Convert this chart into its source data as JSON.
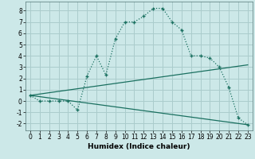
{
  "title": "",
  "xlabel": "Humidex (Indice chaleur)",
  "bg_color": "#cce8e8",
  "grid_color": "#aacccc",
  "line_color": "#1a7060",
  "xlim": [
    -0.5,
    23.5
  ],
  "ylim": [
    -2.6,
    8.8
  ],
  "yticks": [
    -2,
    -1,
    0,
    1,
    2,
    3,
    4,
    5,
    6,
    7,
    8
  ],
  "xticks": [
    0,
    1,
    2,
    3,
    4,
    5,
    6,
    7,
    8,
    9,
    10,
    11,
    12,
    13,
    14,
    15,
    16,
    17,
    18,
    19,
    20,
    21,
    22,
    23
  ],
  "curve_x": [
    0,
    1,
    2,
    3,
    4,
    5,
    6,
    7,
    8,
    9,
    10,
    11,
    12,
    13,
    14,
    15,
    16,
    17,
    18,
    19,
    20,
    21,
    22,
    23
  ],
  "curve_y": [
    0.5,
    0.0,
    0.0,
    0.0,
    0.0,
    -0.8,
    2.2,
    4.0,
    2.3,
    5.5,
    7.0,
    7.0,
    7.5,
    8.2,
    8.2,
    7.0,
    6.3,
    4.0,
    4.0,
    3.8,
    3.0,
    1.2,
    -1.5,
    -2.1
  ],
  "line2_x": [
    0,
    23
  ],
  "line2_y": [
    0.5,
    3.2
  ],
  "line3_x": [
    0,
    23
  ],
  "line3_y": [
    0.5,
    -2.1
  ]
}
